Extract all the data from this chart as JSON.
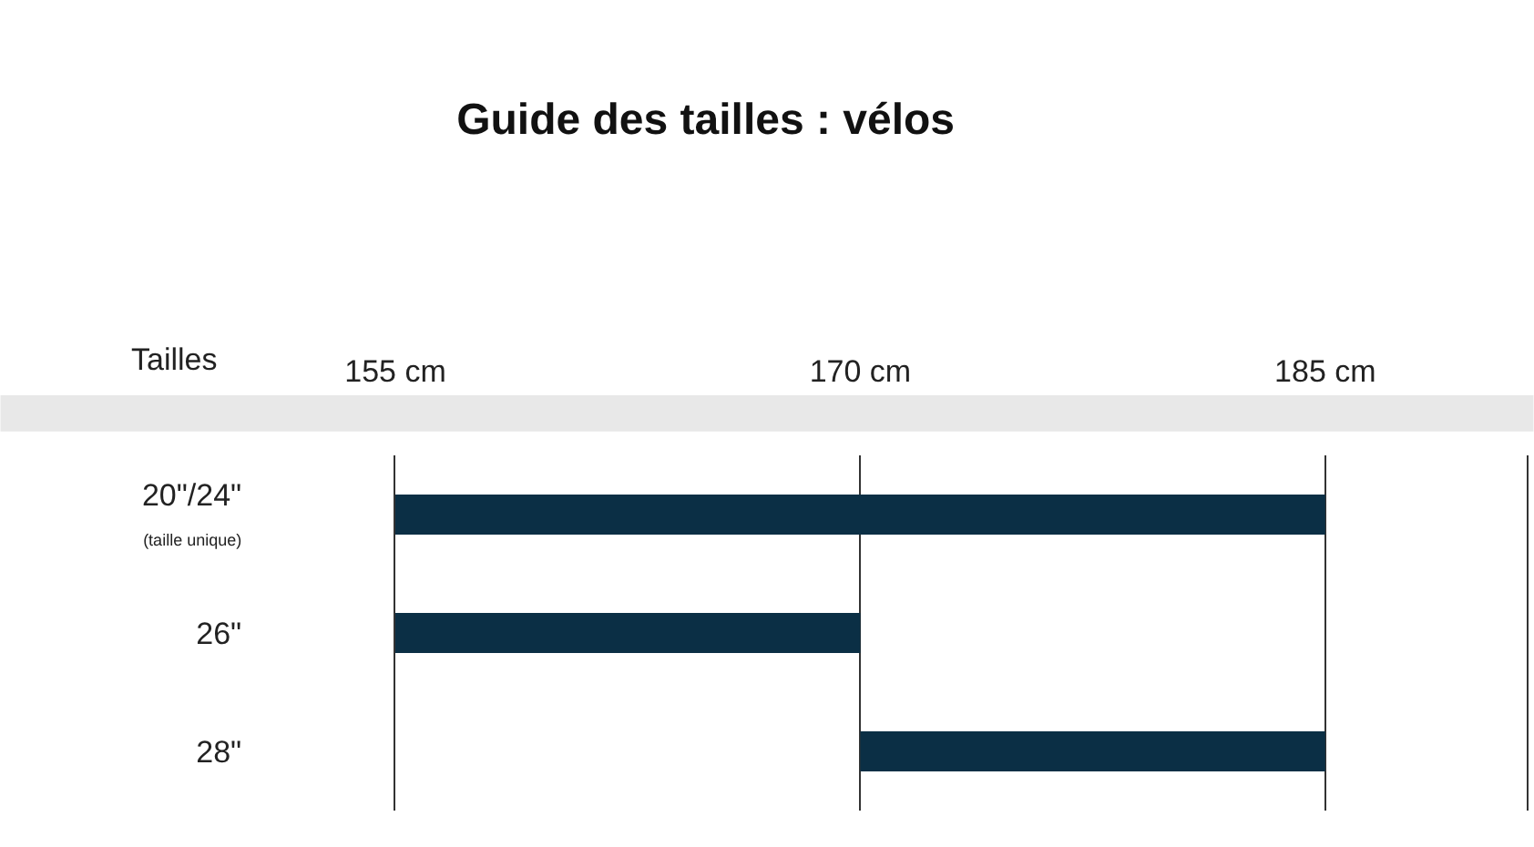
{
  "chart_data": {
    "type": "bar",
    "orientation": "horizontal",
    "title": "Guide des tailles : vélos",
    "ylabel": "Tailles",
    "categories": [
      "20\"/24\"\n(taille unique)",
      "26\"",
      "28\""
    ],
    "base": [
      155,
      155,
      170
    ],
    "values": [
      30,
      15,
      15
    ],
    "color": "#0b2f45",
    "xlim": [
      155,
      191.5
    ],
    "xticks": [
      {
        "value": 155,
        "label": "155 cm"
      },
      {
        "value": 170,
        "label": "170 cm"
      },
      {
        "value": 185,
        "label": "185 cm"
      }
    ],
    "grid": "x"
  }
}
